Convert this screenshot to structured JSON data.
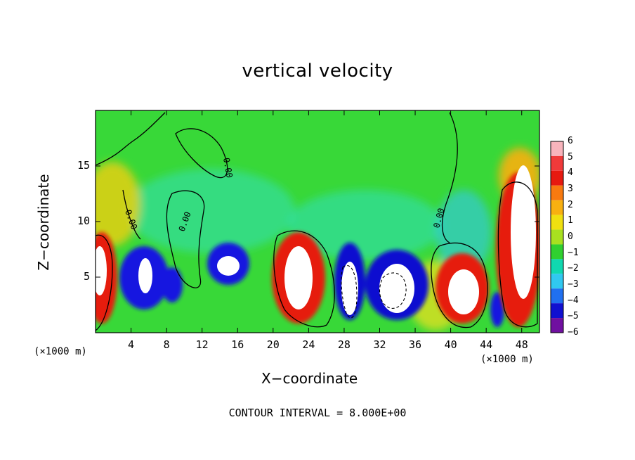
{
  "chart_data": {
    "type": "heatmap",
    "title": "vertical velocity",
    "xlabel": "X−coordinate",
    "ylabel": "Z−coordinate",
    "x_unit": "(×1000 m)",
    "x_unit_right": "(×1000 m)",
    "xlim": [
      0,
      50
    ],
    "ylim": [
      0,
      20
    ],
    "x_ticks": [
      4,
      8,
      12,
      16,
      20,
      24,
      28,
      32,
      36,
      40,
      44,
      48
    ],
    "y_ticks": [
      5,
      10,
      15
    ],
    "colorbar": {
      "ticks": [
        "6",
        "5",
        "4",
        "3",
        "2",
        "1",
        "0",
        "−1",
        "−2",
        "−3",
        "−4",
        "−5",
        "−6"
      ],
      "range": [
        -6,
        6
      ],
      "colors": [
        "#f8b4bc",
        "#f03a3a",
        "#e61a10",
        "#f87a10",
        "#f8b010",
        "#f0e010",
        "#a8e020",
        "#30d030",
        "#10d8b0",
        "#30c8f0",
        "#2070f0",
        "#1010d0",
        "#7010a0"
      ]
    },
    "contour_labels": [
      "0.00",
      "0.00",
      "0.00",
      "0.00"
    ],
    "footer": "CONTOUR INTERVAL = 8.000E+00",
    "features": [
      {
        "kind": "updraft",
        "x": 0.5,
        "z": 5.5,
        "w": 6
      },
      {
        "kind": "downdraft",
        "x": 5.5,
        "z": 5,
        "w": -6
      },
      {
        "kind": "downdraft",
        "x": 9,
        "z": 4.5,
        "w": -4
      },
      {
        "kind": "downdraft",
        "x": 15,
        "z": 6,
        "w": -6
      },
      {
        "kind": "updraft",
        "x": 22,
        "z": 4.5,
        "w": 6
      },
      {
        "kind": "downdraft",
        "x": 28.5,
        "z": 3.5,
        "w": -6
      },
      {
        "kind": "downdraft",
        "x": 33,
        "z": 4.5,
        "w": -6
      },
      {
        "kind": "updraft",
        "x": 41,
        "z": 3.5,
        "w": 6
      },
      {
        "kind": "downdraft",
        "x": 45,
        "z": 2,
        "w": -4
      },
      {
        "kind": "updraft",
        "x": 48.5,
        "z": 8,
        "w": 6
      }
    ]
  }
}
